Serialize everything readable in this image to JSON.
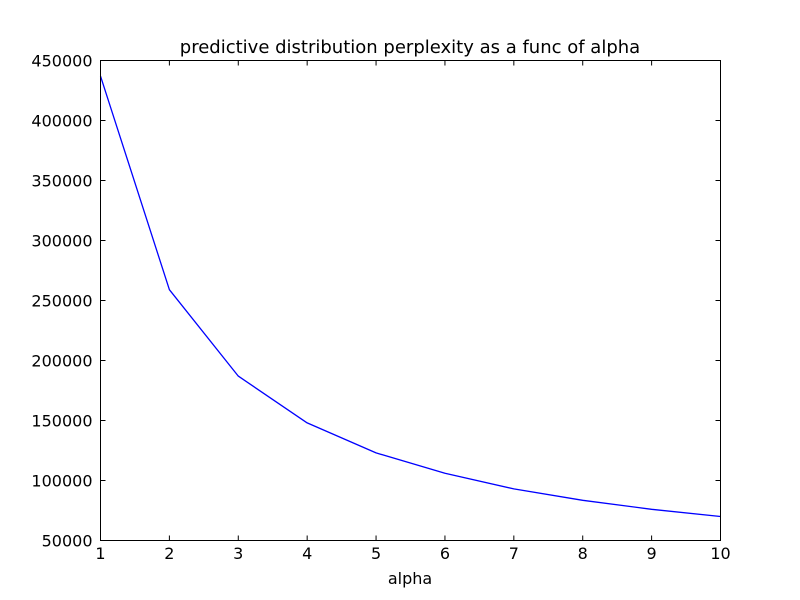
{
  "chart_data": {
    "type": "line",
    "title": "predictive distribution perplexity as a func of alpha",
    "xlabel": "alpha",
    "ylabel": "",
    "xlim": [
      1,
      10
    ],
    "ylim": [
      50000,
      450000
    ],
    "xticks": [
      1,
      2,
      3,
      4,
      5,
      6,
      7,
      8,
      9,
      10
    ],
    "yticks": [
      50000,
      100000,
      150000,
      200000,
      250000,
      300000,
      350000,
      400000,
      450000
    ],
    "grid": false,
    "series": [
      {
        "color": "#0000ff",
        "x": [
          1,
          2,
          3,
          4,
          5,
          6,
          7,
          8,
          9,
          10
        ],
        "y": [
          437000,
          259000,
          187000,
          148000,
          123000,
          106000,
          93000,
          83500,
          76000,
          70000
        ]
      }
    ]
  }
}
